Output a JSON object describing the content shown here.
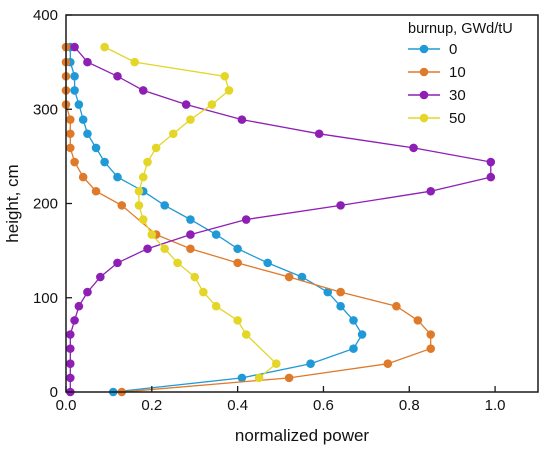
{
  "chart_data": {
    "type": "line",
    "title": "",
    "xlabel": "normalized power",
    "ylabel": "height, cm",
    "xlim": [
      0,
      1.1
    ],
    "ylim": [
      0,
      400
    ],
    "xticks": [
      0.0,
      0.2,
      0.4,
      0.6,
      0.8,
      1.0
    ],
    "yticks": [
      0,
      100,
      200,
      300,
      400
    ],
    "xtick_labels": [
      "0.0",
      "0.2",
      "0.4",
      "0.6",
      "0.8",
      "1.0"
    ],
    "ytick_labels": [
      "0",
      "100",
      "200",
      "300",
      "400"
    ],
    "grid": false,
    "legend": {
      "title": "burnup, GWd/tU",
      "placement": "top-right"
    },
    "series": [
      {
        "name": "0",
        "color": "#1f9ad6",
        "points": [
          [
            0.11,
            0
          ],
          [
            0.41,
            15
          ],
          [
            0.57,
            30
          ],
          [
            0.67,
            46
          ],
          [
            0.69,
            61
          ],
          [
            0.67,
            76
          ],
          [
            0.64,
            91
          ],
          [
            0.61,
            106
          ],
          [
            0.55,
            122
          ],
          [
            0.47,
            137
          ],
          [
            0.4,
            152
          ],
          [
            0.35,
            167
          ],
          [
            0.29,
            183
          ],
          [
            0.23,
            198
          ],
          [
            0.18,
            213
          ],
          [
            0.12,
            228
          ],
          [
            0.09,
            244
          ],
          [
            0.07,
            259
          ],
          [
            0.05,
            274
          ],
          [
            0.04,
            289
          ],
          [
            0.03,
            305
          ],
          [
            0.02,
            320
          ],
          [
            0.02,
            335
          ],
          [
            0.01,
            350
          ],
          [
            0.01,
            366
          ]
        ]
      },
      {
        "name": "10",
        "color": "#e07a2b",
        "points": [
          [
            0.13,
            0
          ],
          [
            0.52,
            15
          ],
          [
            0.75,
            30
          ],
          [
            0.85,
            46
          ],
          [
            0.85,
            61
          ],
          [
            0.82,
            76
          ],
          [
            0.77,
            91
          ],
          [
            0.64,
            106
          ],
          [
            0.52,
            122
          ],
          [
            0.4,
            137
          ],
          [
            0.29,
            152
          ],
          [
            0.21,
            167
          ],
          [
            0.13,
            198
          ],
          [
            0.07,
            213
          ],
          [
            0.04,
            228
          ],
          [
            0.02,
            244
          ],
          [
            0.01,
            259
          ],
          [
            0.01,
            274
          ],
          [
            0.01,
            289
          ],
          [
            0.0,
            305
          ],
          [
            0.0,
            320
          ],
          [
            0.0,
            335
          ],
          [
            0.0,
            350
          ],
          [
            0.0,
            366
          ]
        ]
      },
      {
        "name": "30",
        "color": "#8e1fb4",
        "points": [
          [
            0.01,
            0
          ],
          [
            0.01,
            15
          ],
          [
            0.01,
            30
          ],
          [
            0.01,
            46
          ],
          [
            0.01,
            61
          ],
          [
            0.02,
            76
          ],
          [
            0.03,
            91
          ],
          [
            0.05,
            106
          ],
          [
            0.08,
            122
          ],
          [
            0.12,
            137
          ],
          [
            0.19,
            152
          ],
          [
            0.29,
            167
          ],
          [
            0.42,
            183
          ],
          [
            0.64,
            198
          ],
          [
            0.85,
            213
          ],
          [
            0.99,
            228
          ],
          [
            0.99,
            244
          ],
          [
            0.81,
            259
          ],
          [
            0.59,
            274
          ],
          [
            0.41,
            289
          ],
          [
            0.28,
            305
          ],
          [
            0.18,
            320
          ],
          [
            0.12,
            335
          ],
          [
            0.05,
            350
          ],
          [
            0.02,
            366
          ]
        ]
      },
      {
        "name": "50",
        "color": "#e3d627",
        "points": [
          [
            0.45,
            15
          ],
          [
            0.49,
            30
          ],
          [
            0.42,
            61
          ],
          [
            0.4,
            76
          ],
          [
            0.35,
            91
          ],
          [
            0.32,
            106
          ],
          [
            0.3,
            122
          ],
          [
            0.26,
            137
          ],
          [
            0.23,
            152
          ],
          [
            0.2,
            167
          ],
          [
            0.18,
            183
          ],
          [
            0.17,
            198
          ],
          [
            0.17,
            213
          ],
          [
            0.18,
            228
          ],
          [
            0.19,
            244
          ],
          [
            0.21,
            259
          ],
          [
            0.25,
            274
          ],
          [
            0.29,
            289
          ],
          [
            0.34,
            305
          ],
          [
            0.38,
            320
          ],
          [
            0.37,
            335
          ],
          [
            0.16,
            350
          ],
          [
            0.09,
            366
          ]
        ]
      }
    ]
  }
}
